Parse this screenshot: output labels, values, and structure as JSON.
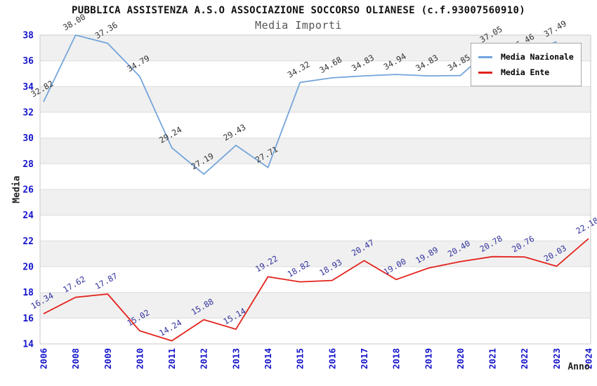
{
  "title": "PUBBLICA ASSISTENZA A.S.O ASSOCIAZIONE SOCCORSO OLIANESE (c.f.93007560910)",
  "subtitle": "Media Importi",
  "legend": {
    "position": "top-right",
    "items": [
      {
        "label": "Media Nazionale",
        "color": "#74a5dc"
      },
      {
        "label": "Media Ente",
        "color": "#e3221b"
      }
    ]
  },
  "colors": {
    "axis_tick_labels": "#1414cc",
    "band_gray": "#f0f0f0",
    "band_white": "#ffffff",
    "gridline": "#dcdcdc",
    "plot_border": "#c8c8c8",
    "nazionale_line": "#74a5dc",
    "nazionale_point_labels": "#333333",
    "ente_line": "#e3221b",
    "ente_point_labels": "#32329e"
  },
  "chart_data": {
    "type": "line",
    "title": "PUBBLICA ASSISTENZA A.S.O ASSOCIAZIONE SOCCORSO OLIANESE (c.f.93007560910)",
    "subtitle": "Media Importi",
    "xlabel": "Anno",
    "ylabel": "Media",
    "x": [
      "2006",
      "2008",
      "2009",
      "2010",
      "2011",
      "2012",
      "2013",
      "2014",
      "2015",
      "2016",
      "2017",
      "2018",
      "2019",
      "2020",
      "2021",
      "2022",
      "2023",
      "2024"
    ],
    "ylim": [
      14,
      38
    ],
    "ytick_step": 2,
    "grid": "horizontal-bands-alternating",
    "legend_position": "top-right",
    "point_labels": "all points labeled with 2-decimal values, rotated ~30deg",
    "series": [
      {
        "name": "Media Nazionale",
        "color": "#74a5dc",
        "label_color": "#333333",
        "values": [
          32.82,
          38.0,
          37.36,
          34.79,
          29.24,
          27.19,
          29.43,
          27.71,
          34.32,
          34.68,
          34.83,
          34.94,
          34.83,
          34.85,
          37.05,
          36.46,
          37.49,
          null
        ]
      },
      {
        "name": "Media Ente",
        "color": "#e3221b",
        "label_color": "#32329e",
        "values": [
          16.34,
          17.62,
          17.87,
          15.02,
          14.24,
          15.88,
          15.14,
          19.22,
          18.82,
          18.93,
          20.47,
          19.0,
          19.89,
          20.4,
          20.78,
          20.76,
          20.03,
          22.18
        ]
      }
    ]
  }
}
